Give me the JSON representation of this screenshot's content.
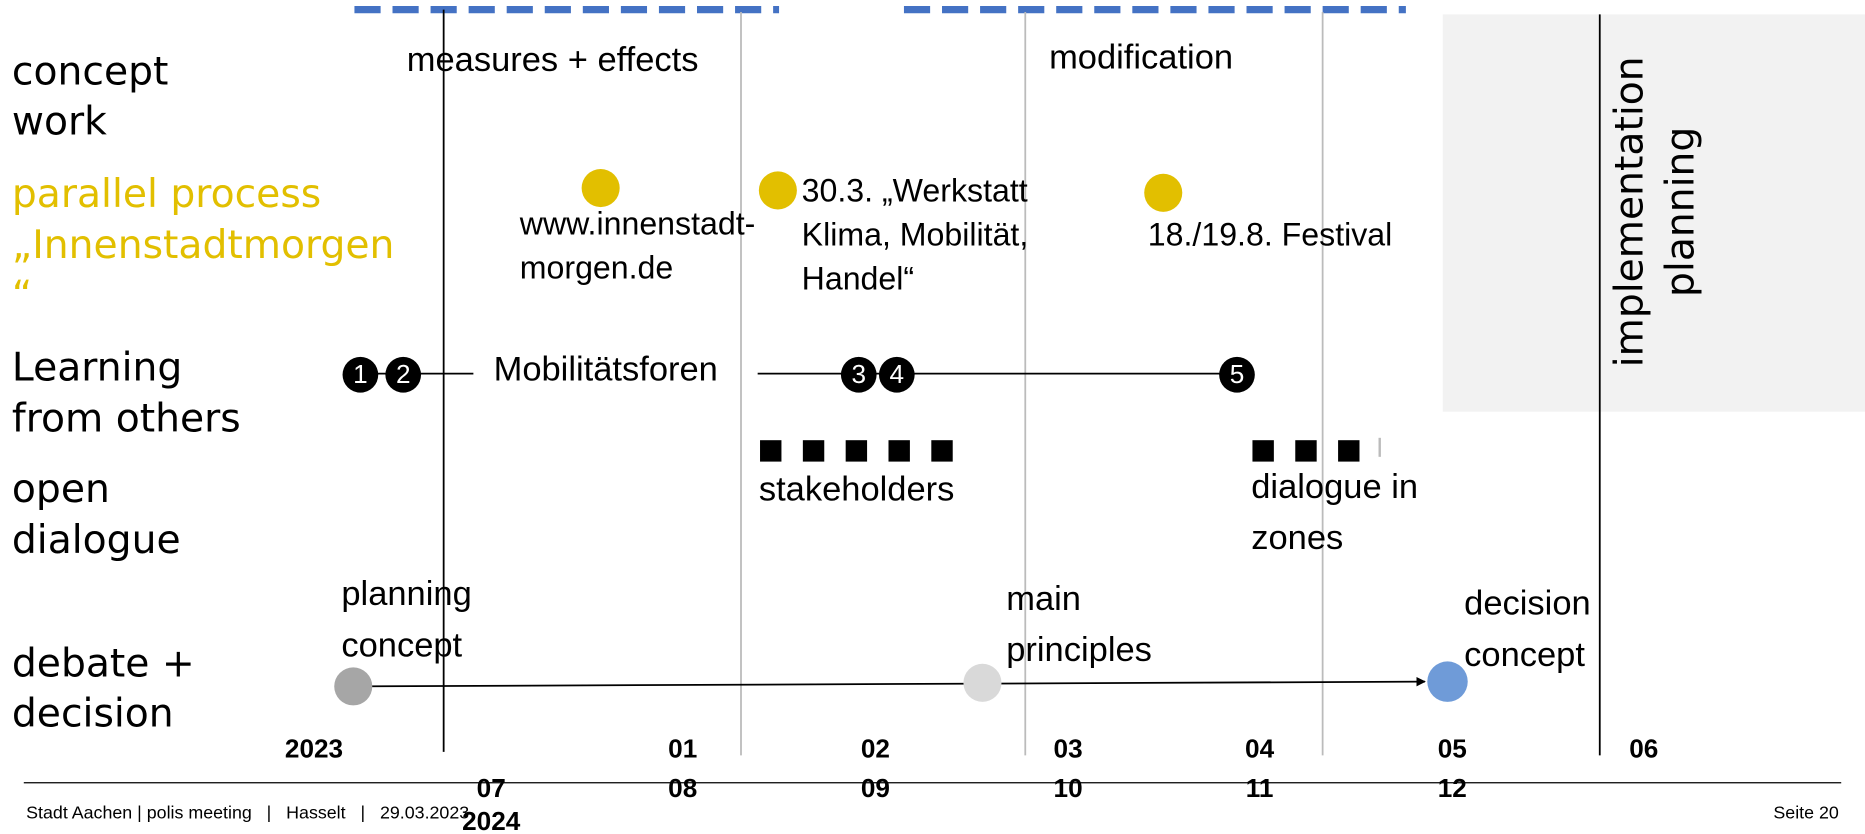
{
  "rows": [
    [
      "concept",
      "work"
    ],
    [
      "parallel process",
      "„Innenstadtmorgen",
      "“"
    ],
    [
      "Learning",
      "from others"
    ],
    [
      "open",
      "dialogue"
    ],
    [
      "debate +",
      "decision"
    ]
  ],
  "phases": {
    "measures": "measures + effects",
    "modification": "modification",
    "implementation": [
      "implementation",
      "planning"
    ]
  },
  "parallel_events": [
    [
      "www.innenstadt-",
      "morgen.de"
    ],
    [
      "30.3. „Werkstatt",
      "Klima, Mobilität,",
      "Handel“"
    ],
    [
      "18./19.8. Festival"
    ]
  ],
  "learning": {
    "label": "Mobilitätsforen",
    "markers": [
      "1",
      "2",
      "3",
      "4",
      "5"
    ]
  },
  "dialogue": {
    "stakeholders": "stakeholders",
    "zones": [
      "dialogue in",
      "zones"
    ]
  },
  "decision_steps": [
    [
      "planning",
      "concept"
    ],
    [
      "main",
      "principles"
    ],
    [
      "decision",
      "concept"
    ]
  ],
  "timeline": {
    "top": [
      "2023",
      "01",
      "02",
      "03",
      "04",
      "05",
      "06"
    ],
    "bottom": [
      "07",
      "08",
      "09",
      "10",
      "11",
      "12"
    ],
    "year2": "2024"
  },
  "footer": {
    "left": "Stadt Aachen | polis meeting   |   Hasselt   |   29.03.2023",
    "right": "Seite 20"
  }
}
